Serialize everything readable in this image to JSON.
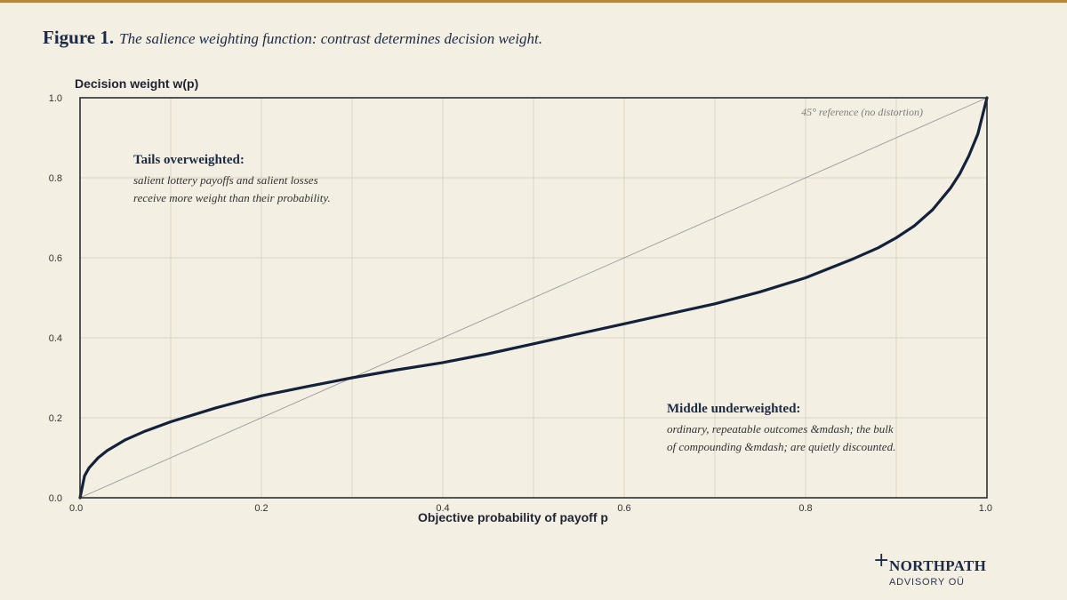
{
  "figure": {
    "label": "Figure 1.",
    "caption": "The salience weighting function: contrast determines decision weight."
  },
  "chart_data": {
    "type": "line",
    "title": "The salience weighting function: contrast determines decision weight.",
    "xlabel": "Objective probability of payoff p",
    "ylabel": "Decision weight  w(p)",
    "xlim": [
      0,
      1
    ],
    "ylim": [
      0,
      1
    ],
    "x_ticks": [
      "0.0",
      "0.2",
      "0.4",
      "0.6",
      "0.8",
      "1.0"
    ],
    "y_ticks": [
      "0.0",
      "0.2",
      "0.4",
      "0.6",
      "0.8",
      "1.0"
    ],
    "grid": true,
    "series": [
      {
        "x": [
          0,
          0.005,
          0.01,
          0.02,
          0.03,
          0.05,
          0.07,
          0.1,
          0.15,
          0.2,
          0.25,
          0.3,
          0.35,
          0.4,
          0.45,
          0.5,
          0.55,
          0.6,
          0.65,
          0.7,
          0.75,
          0.8,
          0.85,
          0.88,
          0.9,
          0.92,
          0.94,
          0.96,
          0.97,
          0.98,
          0.99,
          0.995,
          1.0
        ],
        "values": [
          0,
          0.055,
          0.075,
          0.1,
          0.118,
          0.145,
          0.165,
          0.19,
          0.225,
          0.255,
          0.278,
          0.3,
          0.32,
          0.338,
          0.36,
          0.385,
          0.41,
          0.435,
          0.46,
          0.485,
          0.515,
          0.55,
          0.595,
          0.625,
          0.65,
          0.68,
          0.72,
          0.775,
          0.81,
          0.855,
          0.91,
          0.955,
          1.0
        ],
        "color": "#13213a"
      }
    ],
    "reference_line": {
      "label": "45° reference (no distortion)",
      "from": [
        0,
        0
      ],
      "to": [
        1,
        1
      ],
      "color": "#9a9a9a"
    },
    "annotations": [
      {
        "title": "Tails overweighted:",
        "lines": [
          "salient lottery payoffs and salient losses",
          "receive more weight than their probability."
        ]
      },
      {
        "title": "Middle underweighted:",
        "lines": [
          "ordinary, repeatable outcomes &mdash; the bulk",
          "of compounding &mdash; are quietly discounted."
        ]
      }
    ]
  },
  "brand": {
    "name": "NORTHPATH",
    "subtitle": "ADVISORY OÜ",
    "mark_icon": "plus-cross-icon"
  }
}
